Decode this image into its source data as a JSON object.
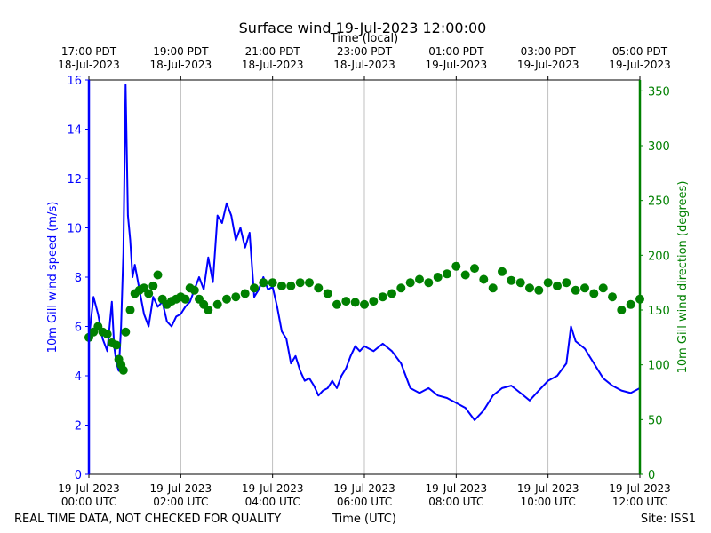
{
  "chart_data": {
    "type": "line",
    "title": "Surface wind 19-Jul-2023 12:00:00",
    "top_axis_label": "Time (local)",
    "xlabel": "Time (UTC)",
    "ylabel_left": "10m Gill wind speed (m/s)",
    "ylabel_right": "10m Gill wind direction (degrees)",
    "footer_left": "REAL TIME DATA, NOT CHECKED FOR QUALITY",
    "footer_right": "Site: ISS1",
    "xlim_hours_utc": [
      0,
      12
    ],
    "ylim_left": [
      0,
      16
    ],
    "ylim_right": [
      0,
      360
    ],
    "grid": "vertical",
    "colors": {
      "speed": "#0000ff",
      "direction": "#008000",
      "text": "#000000",
      "grid": "#b0b0b0"
    },
    "bottom_ticks": [
      {
        "hour": 0,
        "date": "19-Jul-2023",
        "time": "00:00 UTC"
      },
      {
        "hour": 2,
        "date": "19-Jul-2023",
        "time": "02:00 UTC"
      },
      {
        "hour": 4,
        "date": "19-Jul-2023",
        "time": "04:00 UTC"
      },
      {
        "hour": 6,
        "date": "19-Jul-2023",
        "time": "06:00 UTC"
      },
      {
        "hour": 8,
        "date": "19-Jul-2023",
        "time": "08:00 UTC"
      },
      {
        "hour": 10,
        "date": "19-Jul-2023",
        "time": "10:00 UTC"
      },
      {
        "hour": 12,
        "date": "19-Jul-2023",
        "time": "12:00 UTC"
      }
    ],
    "top_ticks": [
      {
        "hour": 0,
        "time": "17:00 PDT",
        "date": "18-Jul-2023"
      },
      {
        "hour": 2,
        "time": "19:00 PDT",
        "date": "18-Jul-2023"
      },
      {
        "hour": 4,
        "time": "21:00 PDT",
        "date": "18-Jul-2023"
      },
      {
        "hour": 6,
        "time": "23:00 PDT",
        "date": "18-Jul-2023"
      },
      {
        "hour": 8,
        "time": "01:00 PDT",
        "date": "19-Jul-2023"
      },
      {
        "hour": 10,
        "time": "03:00 PDT",
        "date": "19-Jul-2023"
      },
      {
        "hour": 12,
        "time": "05:00 PDT",
        "date": "19-Jul-2023"
      }
    ],
    "left_ticks": [
      0,
      2,
      4,
      6,
      8,
      10,
      12,
      14,
      16
    ],
    "right_ticks": [
      0,
      50,
      100,
      150,
      200,
      250,
      300,
      350
    ],
    "series": [
      {
        "name": "10m Gill wind speed",
        "axis": "left",
        "style": "line",
        "x": [
          0,
          0.1,
          0.2,
          0.3,
          0.4,
          0.5,
          0.55,
          0.6,
          0.65,
          0.7,
          0.75,
          0.8,
          0.85,
          0.9,
          0.95,
          1.0,
          1.1,
          1.2,
          1.3,
          1.4,
          1.5,
          1.6,
          1.7,
          1.8,
          1.9,
          2.0,
          2.1,
          2.2,
          2.3,
          2.4,
          2.5,
          2.6,
          2.7,
          2.8,
          2.9,
          3.0,
          3.1,
          3.2,
          3.3,
          3.4,
          3.5,
          3.6,
          3.7,
          3.8,
          3.9,
          4.0,
          4.1,
          4.2,
          4.3,
          4.4,
          4.5,
          4.6,
          4.7,
          4.8,
          4.9,
          5.0,
          5.1,
          5.2,
          5.3,
          5.4,
          5.5,
          5.6,
          5.7,
          5.8,
          5.9,
          6.0,
          6.2,
          6.4,
          6.6,
          6.8,
          7.0,
          7.2,
          7.4,
          7.6,
          7.8,
          8.0,
          8.2,
          8.4,
          8.6,
          8.8,
          9.0,
          9.2,
          9.4,
          9.6,
          9.8,
          10.0,
          10.2,
          10.4,
          10.5,
          10.6,
          10.8,
          11.0,
          11.2,
          11.4,
          11.6,
          11.8,
          12.0
        ],
        "values": [
          5.5,
          7.2,
          6.5,
          5.5,
          5.0,
          7.0,
          5.2,
          4.5,
          4.2,
          6.0,
          9.0,
          15.8,
          10.5,
          9.5,
          8.0,
          8.5,
          7.5,
          6.5,
          6.0,
          7.2,
          6.8,
          7.0,
          6.2,
          6.0,
          6.4,
          6.5,
          6.8,
          7.0,
          7.5,
          8.0,
          7.5,
          8.8,
          7.8,
          10.5,
          10.2,
          11.0,
          10.5,
          9.5,
          10.0,
          9.2,
          9.8,
          7.2,
          7.5,
          8.0,
          7.5,
          7.6,
          6.8,
          5.8,
          5.5,
          4.5,
          4.8,
          4.2,
          3.8,
          3.9,
          3.6,
          3.2,
          3.4,
          3.5,
          3.8,
          3.5,
          4.0,
          4.3,
          4.8,
          5.2,
          5.0,
          5.2,
          5.0,
          5.3,
          5.0,
          4.5,
          3.5,
          3.3,
          3.5,
          3.2,
          3.1,
          2.9,
          2.7,
          2.2,
          2.6,
          3.2,
          3.5,
          3.6,
          3.3,
          3.0,
          3.4,
          3.8,
          4.0,
          4.5,
          6.0,
          5.4,
          5.1,
          4.5,
          3.9,
          3.6,
          3.4,
          3.3,
          3.5
        ]
      },
      {
        "name": "10m Gill wind direction",
        "axis": "right",
        "style": "markers",
        "x": [
          0,
          0.1,
          0.2,
          0.3,
          0.4,
          0.5,
          0.6,
          0.65,
          0.7,
          0.75,
          0.8,
          0.9,
          1.0,
          1.1,
          1.2,
          1.3,
          1.4,
          1.5,
          1.6,
          1.7,
          1.8,
          1.9,
          2.0,
          2.1,
          2.2,
          2.3,
          2.4,
          2.5,
          2.6,
          2.8,
          3.0,
          3.2,
          3.4,
          3.6,
          3.8,
          4.0,
          4.2,
          4.4,
          4.6,
          4.8,
          5.0,
          5.2,
          5.4,
          5.6,
          5.8,
          6.0,
          6.2,
          6.4,
          6.6,
          6.8,
          7.0,
          7.2,
          7.4,
          7.6,
          7.8,
          8.0,
          8.2,
          8.4,
          8.6,
          8.8,
          9.0,
          9.2,
          9.4,
          9.6,
          9.8,
          10.0,
          10.2,
          10.4,
          10.6,
          10.8,
          11.0,
          11.2,
          11.4,
          11.6,
          11.8,
          12.0
        ],
        "values": [
          125,
          130,
          135,
          130,
          128,
          120,
          118,
          105,
          100,
          95,
          130,
          150,
          165,
          168,
          170,
          165,
          172,
          182,
          160,
          155,
          158,
          160,
          162,
          160,
          170,
          168,
          160,
          155,
          150,
          155,
          160,
          162,
          165,
          170,
          175,
          175,
          172,
          172,
          175,
          175,
          170,
          165,
          155,
          158,
          157,
          155,
          158,
          162,
          165,
          170,
          175,
          178,
          175,
          180,
          183,
          190,
          182,
          188,
          178,
          170,
          185,
          177,
          175,
          170,
          168,
          175,
          172,
          175,
          168,
          170,
          165,
          170,
          162,
          150,
          155,
          160
        ]
      }
    ]
  }
}
